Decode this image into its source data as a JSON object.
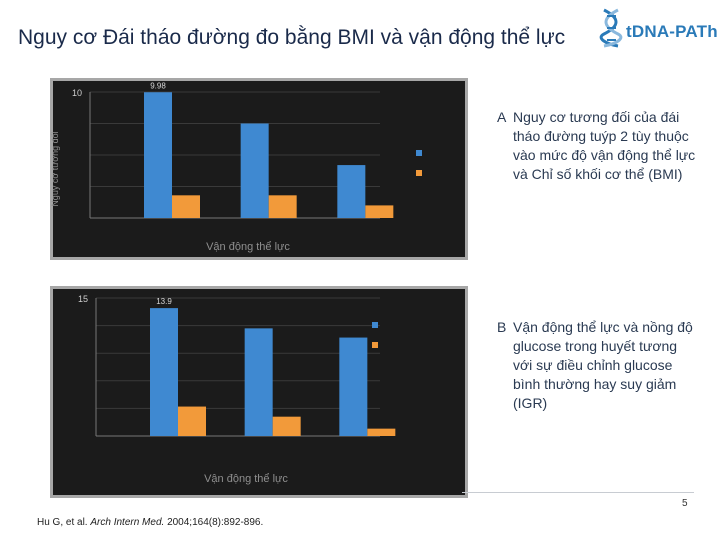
{
  "slide": {
    "title": "Nguy cơ Đái tháo đường đo bằng BMI và vận động thể lực",
    "logo_text": "tDNA-PATh",
    "page_number": "5",
    "reference": {
      "authors": "Hu G, et al.",
      "journal": "Arch Intern Med.",
      "details": "2004;164(8):892-896."
    }
  },
  "captions": [
    {
      "tag": "A",
      "text": "Nguy cơ tương đối của đái tháo đường tuýp 2 tùy thuộc vào mức độ vận động thể lực và Chỉ số khối cơ thể (BMI)"
    },
    {
      "tag": "B",
      "text": "Vận động thể lực và nồng độ glucose trong huyết tương với sự điều chỉnh glucose bình thường hay suy giảm (IGR)"
    }
  ],
  "colors": {
    "chart_bg": "#1b1b1b",
    "frame": "#a7a7a7",
    "bar_blue": "#3f89d1",
    "bar_orange": "#f29a3a",
    "title_text": "#1a2a4a",
    "logo_blue": "#2a7ab8"
  },
  "chart_data": [
    {
      "type": "bar",
      "title": "",
      "xlabel": "Vận động thể lực",
      "ylabel": "Nguy cơ tương đối",
      "ylim": [
        0,
        10
      ],
      "yticks": [
        10
      ],
      "value_labels": [
        "9.98"
      ],
      "categories": [
        "",
        "",
        ""
      ],
      "series": [
        {
          "name": "",
          "values": [
            9.98,
            7.5,
            4.2
          ]
        },
        {
          "name": "",
          "values": [
            1.8,
            1.8,
            1.0
          ]
        }
      ]
    },
    {
      "type": "bar",
      "title": "",
      "xlabel": "Vận động thể lực",
      "ylabel": "",
      "ylim": [
        0,
        15
      ],
      "yticks": [
        15
      ],
      "value_labels": [
        "13.9"
      ],
      "categories": [
        "",
        "",
        ""
      ],
      "series": [
        {
          "name": "",
          "values": [
            13.9,
            11.7,
            10.7
          ]
        },
        {
          "name": "",
          "values": [
            3.2,
            2.1,
            0.8
          ]
        }
      ]
    }
  ]
}
